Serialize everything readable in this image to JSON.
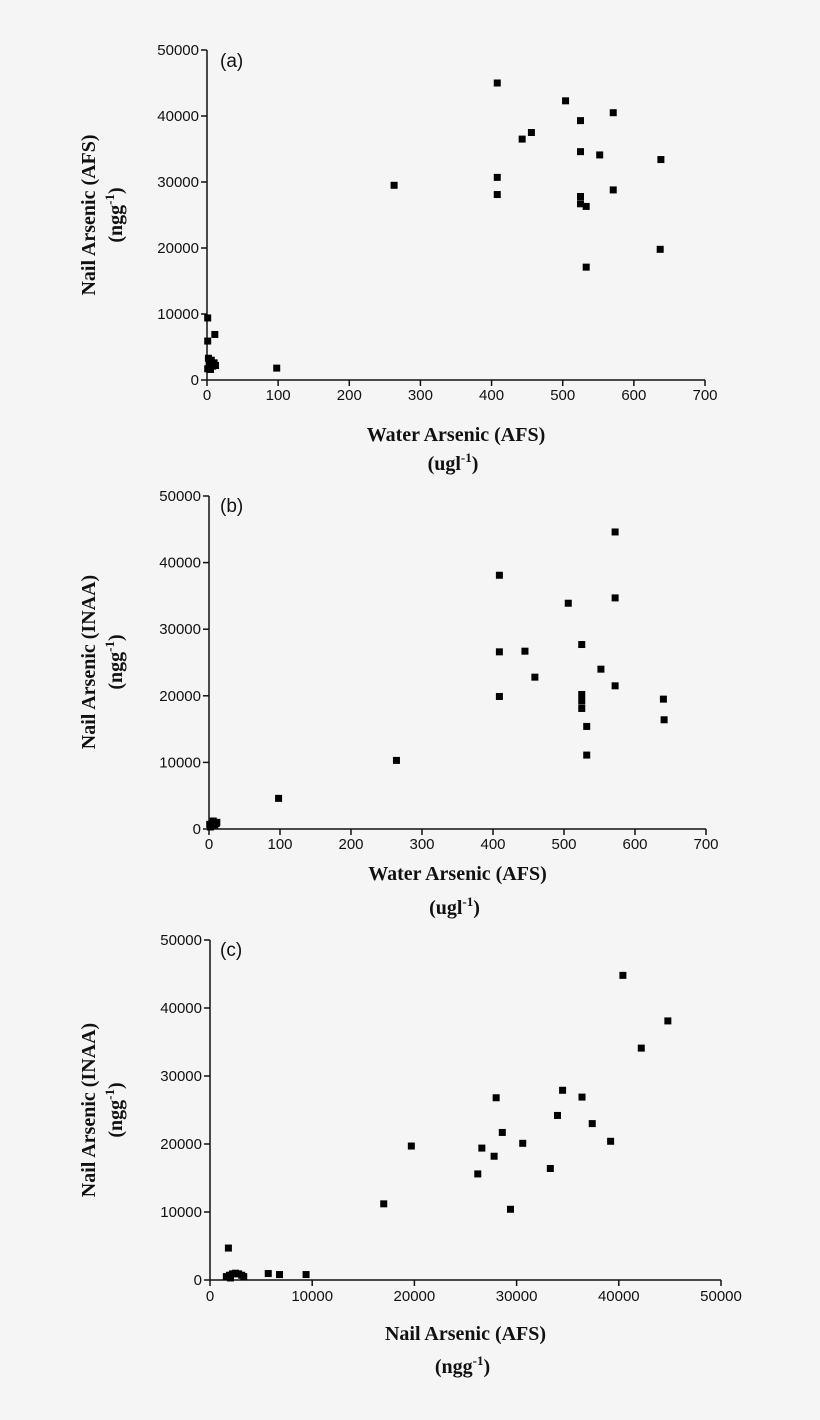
{
  "colors": {
    "background": "#f5f5f5",
    "ink": "#111111",
    "marker": "#000000"
  },
  "chart_data": [
    {
      "type": "scatter",
      "panel_label": "(a)",
      "title": "",
      "xlabel": "Water Arsenic (AFS)",
      "xlabel_unit": [
        "(ugl",
        "-1",
        ")"
      ],
      "ylabel": "Nail Arsenic (AFS)",
      "ylabel_unit": [
        "(ngg",
        "-1",
        ")"
      ],
      "xlim": [
        0,
        700
      ],
      "ylim": [
        0,
        50000
      ],
      "xticks": [
        0,
        100,
        200,
        300,
        400,
        500,
        600,
        700
      ],
      "yticks": [
        0,
        10000,
        20000,
        30000,
        40000,
        50000
      ],
      "grid": false,
      "legend": null,
      "marker": "square",
      "points": [
        [
          1,
          9400
        ],
        [
          11,
          6900
        ],
        [
          1,
          5900
        ],
        [
          2,
          3300
        ],
        [
          6,
          3000
        ],
        [
          10,
          2600
        ],
        [
          3,
          2300
        ],
        [
          8,
          2100
        ],
        [
          1,
          1700
        ],
        [
          5,
          1600
        ],
        [
          12,
          2200
        ],
        [
          98,
          1800
        ],
        [
          263,
          29500
        ],
        [
          408,
          45000
        ],
        [
          408,
          30700
        ],
        [
          408,
          28100
        ],
        [
          443,
          36500
        ],
        [
          456,
          37500
        ],
        [
          504,
          42300
        ],
        [
          525,
          39300
        ],
        [
          525,
          34600
        ],
        [
          525,
          27800
        ],
        [
          525,
          26700
        ],
        [
          533,
          26300
        ],
        [
          533,
          17100
        ],
        [
          552,
          34100
        ],
        [
          571,
          40500
        ],
        [
          571,
          28800
        ],
        [
          637,
          19800
        ],
        [
          638,
          33400
        ]
      ]
    },
    {
      "type": "scatter",
      "panel_label": "(b)",
      "title": "",
      "xlabel": "Water Arsenic (AFS)",
      "xlabel_unit": [
        "(ugl",
        "-1",
        ")"
      ],
      "ylabel": "Nail Arsenic (INAA)",
      "ylabel_unit": [
        "(ngg",
        "-1",
        ")"
      ],
      "xlim": [
        0,
        700
      ],
      "ylim": [
        0,
        50000
      ],
      "xticks": [
        0,
        100,
        200,
        300,
        400,
        500,
        600,
        700
      ],
      "yticks": [
        0,
        10000,
        20000,
        30000,
        40000,
        50000
      ],
      "grid": false,
      "legend": null,
      "marker": "square",
      "points": [
        [
          1,
          700
        ],
        [
          3,
          500
        ],
        [
          5,
          900
        ],
        [
          8,
          600
        ],
        [
          11,
          1000
        ],
        [
          2,
          300
        ],
        [
          6,
          1200
        ],
        [
          10,
          800
        ],
        [
          98,
          4600
        ],
        [
          264,
          10300
        ],
        [
          409,
          38100
        ],
        [
          409,
          26600
        ],
        [
          409,
          19900
        ],
        [
          445,
          26700
        ],
        [
          459,
          22800
        ],
        [
          506,
          33900
        ],
        [
          525,
          27700
        ],
        [
          525,
          20200
        ],
        [
          525,
          19200
        ],
        [
          525,
          18100
        ],
        [
          532,
          15400
        ],
        [
          532,
          11100
        ],
        [
          552,
          24000
        ],
        [
          572,
          44600
        ],
        [
          572,
          34700
        ],
        [
          572,
          21500
        ],
        [
          640,
          19500
        ],
        [
          641,
          16400
        ]
      ]
    },
    {
      "type": "scatter",
      "panel_label": "(c)",
      "title": "",
      "xlabel": "Nail Arsenic (AFS)",
      "xlabel_unit": [
        "(ngg",
        "-1",
        ")"
      ],
      "ylabel": "Nail Arsenic (INAA)",
      "ylabel_unit": [
        "(ngg",
        "-1",
        ")"
      ],
      "xlim": [
        0,
        50000
      ],
      "ylim": [
        0,
        50000
      ],
      "xticks": [
        0,
        10000,
        20000,
        30000,
        40000,
        50000
      ],
      "yticks": [
        0,
        10000,
        20000,
        30000,
        40000,
        50000
      ],
      "grid": false,
      "legend": null,
      "marker": "square",
      "points": [
        [
          1800,
          4700
        ],
        [
          1600,
          500
        ],
        [
          1900,
          700
        ],
        [
          2200,
          900
        ],
        [
          2500,
          1000
        ],
        [
          2800,
          900
        ],
        [
          3100,
          700
        ],
        [
          3300,
          500
        ],
        [
          2000,
          300
        ],
        [
          5700,
          950
        ],
        [
          6800,
          800
        ],
        [
          9400,
          800
        ],
        [
          17000,
          11200
        ],
        [
          19700,
          19700
        ],
        [
          26200,
          15600
        ],
        [
          26600,
          19400
        ],
        [
          27800,
          18200
        ],
        [
          28000,
          26800
        ],
        [
          28600,
          21700
        ],
        [
          29400,
          10400
        ],
        [
          30600,
          20100
        ],
        [
          33300,
          16400
        ],
        [
          34000,
          24200
        ],
        [
          34500,
          27900
        ],
        [
          36400,
          26900
        ],
        [
          37400,
          23000
        ],
        [
          39200,
          20400
        ],
        [
          40400,
          44800
        ],
        [
          42200,
          34100
        ],
        [
          44800,
          38100
        ]
      ]
    }
  ]
}
